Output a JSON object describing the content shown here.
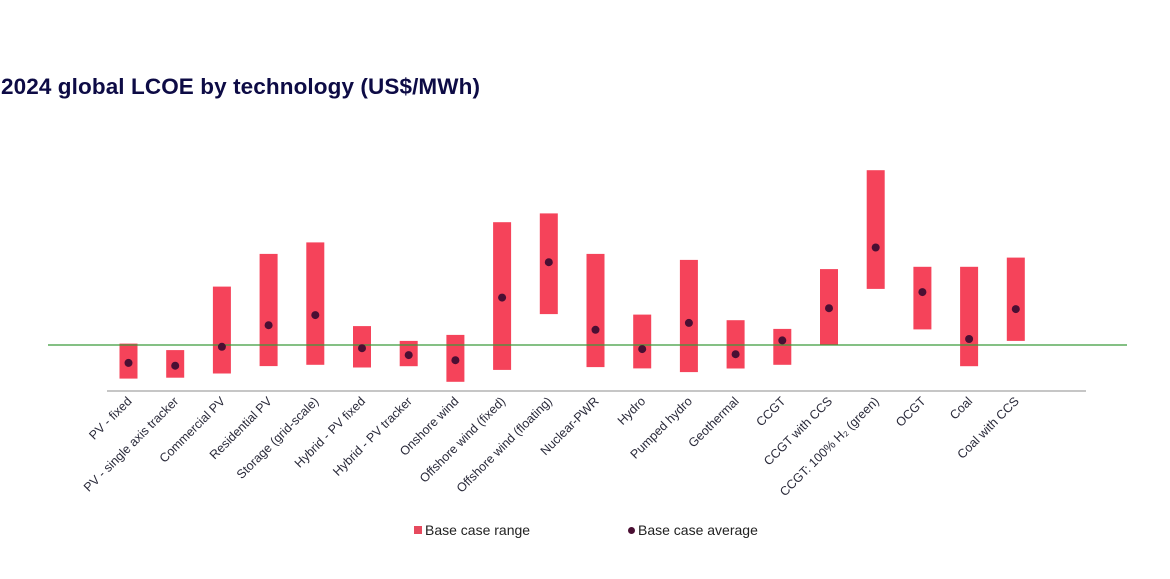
{
  "chart_data": {
    "type": "bar",
    "subtype": "floating-range-with-average",
    "title": "2024 global LCOE by technology (US$/MWh)",
    "xlabel": "",
    "ylabel": "",
    "value_note": "No y-axis ticks shown; values estimated as an index where the horizontal green reference line = 100 and the x-axis baseline = 0",
    "ylim": [
      0,
      500
    ],
    "reference_line": 100,
    "grid": false,
    "legend_position": "bottom",
    "categories": [
      "PV - fixed",
      "PV - single axis tracker",
      "Commercial PV",
      "Residential PV",
      "Storage (grid-scale)",
      "Hybrid - PV fixed",
      "Hybrid - PV tracker",
      "Onshore wind",
      "Offshore wind (fixed)",
      "Offshore wind (floating)",
      "Nuclear-PWR",
      "Hydro",
      "Pumped hydro",
      "Geothermal",
      "CCGT",
      "CCGT with CCS",
      "CCGT: 100% H₂ (green)",
      "OCGT",
      "Coal",
      "Coal with CCS"
    ],
    "series": [
      {
        "name": "Base case range",
        "color": "#f5435a",
        "low": [
          27,
          29,
          38,
          54,
          57,
          51,
          54,
          20,
          46,
          167,
          52,
          49,
          41,
          49,
          57,
          99,
          222,
          134,
          54,
          109
        ],
        "high": [
          103,
          89,
          227,
          298,
          323,
          141,
          109,
          122,
          367,
          386,
          298,
          166,
          285,
          154,
          135,
          265,
          480,
          270,
          270,
          290
        ]
      },
      {
        "name": "Base case average",
        "color": "#4a0f33",
        "values": [
          61,
          55,
          96,
          143,
          165,
          93,
          78,
          67,
          203,
          280,
          133,
          91,
          148,
          80,
          110,
          180,
          312,
          215,
          113,
          178
        ]
      }
    ]
  },
  "legend": {
    "range_label": "Base case range",
    "average_label": "Base case average"
  },
  "colors": {
    "title": "#0d0b45",
    "bar": "#f5435a",
    "dot": "#4a0f33",
    "reference_line": "#3a9a3a",
    "axis": "#b4b4b4"
  }
}
